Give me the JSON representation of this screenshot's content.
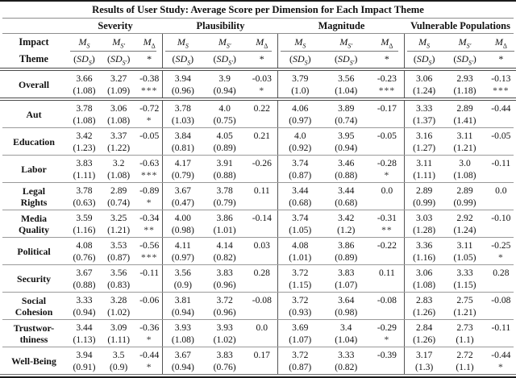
{
  "title": "Results of User Study: Average Score per Dimension for Each Impact Theme",
  "row_header": [
    "Impact",
    "Theme"
  ],
  "groups": [
    "Severity",
    "Plausibility",
    "Magnitude",
    "Vulnerable Populations"
  ],
  "subheader": {
    "mean": "M",
    "sd": "SD",
    "sub_s": "S",
    "sub_sp": "S′",
    "sub_d": "Δ",
    "star": "*",
    "paren_open": "(",
    "paren_close": ")"
  },
  "rows": [
    {
      "label": [
        "Overall"
      ],
      "groups": [
        {
          "m": "3.66",
          "sd": "(1.08)",
          "mp": "3.27",
          "sdp": "(1.09)",
          "d": "-0.38",
          "sig": "***"
        },
        {
          "m": "3.94",
          "sd": "(0.96)",
          "mp": "3.9",
          "sdp": "(0.94)",
          "d": "-0.03",
          "sig": "*"
        },
        {
          "m": "3.79",
          "sd": "(1.0)",
          "mp": "3.56",
          "sdp": "(1.04)",
          "d": "-0.23",
          "sig": "***"
        },
        {
          "m": "3.06",
          "sd": "(1.24)",
          "mp": "2.93",
          "sdp": "(1.18)",
          "d": "-0.13",
          "sig": "***"
        }
      ]
    },
    {
      "label": [
        "Aut"
      ],
      "groups": [
        {
          "m": "3.78",
          "sd": "(1.08)",
          "mp": "3.06",
          "sdp": "(1.08)",
          "d": "-0.72",
          "sig": "*"
        },
        {
          "m": "3.78",
          "sd": "(1.03)",
          "mp": "4.0",
          "sdp": "(0.75)",
          "d": "0.22",
          "sig": ""
        },
        {
          "m": "4.06",
          "sd": "(0.97)",
          "mp": "3.89",
          "sdp": "(0.74)",
          "d": "-0.17",
          "sig": ""
        },
        {
          "m": "3.33",
          "sd": "(1.37)",
          "mp": "2.89",
          "sdp": "(1.41)",
          "d": "-0.44",
          "sig": ""
        }
      ]
    },
    {
      "label": [
        "Education"
      ],
      "groups": [
        {
          "m": "3.42",
          "sd": "(1.23)",
          "mp": "3.37",
          "sdp": "(1.22)",
          "d": "-0.05",
          "sig": ""
        },
        {
          "m": "3.84",
          "sd": "(0.81)",
          "mp": "4.05",
          "sdp": "(0.89)",
          "d": "0.21",
          "sig": ""
        },
        {
          "m": "4.0",
          "sd": "(0.92)",
          "mp": "3.95",
          "sdp": "(0.94)",
          "d": "-0.05",
          "sig": ""
        },
        {
          "m": "3.16",
          "sd": "(1.27)",
          "mp": "3.11",
          "sdp": "(1.21)",
          "d": "-0.05",
          "sig": ""
        }
      ]
    },
    {
      "label": [
        "Labor"
      ],
      "groups": [
        {
          "m": "3.83",
          "sd": "(1.11)",
          "mp": "3.2",
          "sdp": "(1.08)",
          "d": "-0.63",
          "sig": "***"
        },
        {
          "m": "4.17",
          "sd": "(0.79)",
          "mp": "3.91",
          "sdp": "(0.88)",
          "d": "-0.26",
          "sig": ""
        },
        {
          "m": "3.74",
          "sd": "(0.87)",
          "mp": "3.46",
          "sdp": "(0.88)",
          "d": "-0.28",
          "sig": "*"
        },
        {
          "m": "3.11",
          "sd": "(1.11)",
          "mp": "3.0",
          "sdp": "(1.08)",
          "d": "-0.11",
          "sig": ""
        }
      ]
    },
    {
      "label": [
        "Legal",
        "Rights"
      ],
      "groups": [
        {
          "m": "3.78",
          "sd": "(0.63)",
          "mp": "2.89",
          "sdp": "(0.74)",
          "d": "-0.89",
          "sig": "*"
        },
        {
          "m": "3.67",
          "sd": "(0.47)",
          "mp": "3.78",
          "sdp": "(0.79)",
          "d": "0.11",
          "sig": ""
        },
        {
          "m": "3.44",
          "sd": "(0.68)",
          "mp": "3.44",
          "sdp": "(0.68)",
          "d": "0.0",
          "sig": ""
        },
        {
          "m": "2.89",
          "sd": "(0.99)",
          "mp": "2.89",
          "sdp": "(0.99)",
          "d": "0.0",
          "sig": ""
        }
      ]
    },
    {
      "label": [
        "Media",
        "Quality"
      ],
      "groups": [
        {
          "m": "3.59",
          "sd": "(1.16)",
          "mp": "3.25",
          "sdp": "(1.21)",
          "d": "-0.34",
          "sig": "**"
        },
        {
          "m": "4.00",
          "sd": "(0.98)",
          "mp": "3.86",
          "sdp": "(1.01)",
          "d": "-0.14",
          "sig": ""
        },
        {
          "m": "3.74",
          "sd": "(1.05)",
          "mp": "3.42",
          "sdp": "(1.2)",
          "d": "-0.31",
          "sig": "**"
        },
        {
          "m": "3.03",
          "sd": "(1.28)",
          "mp": "2.92",
          "sdp": "(1.24)",
          "d": "-0.10",
          "sig": ""
        }
      ]
    },
    {
      "label": [
        "Political"
      ],
      "groups": [
        {
          "m": "4.08",
          "sd": "(0.76)",
          "mp": "3.53",
          "sdp": "(0.87)",
          "d": "-0.56",
          "sig": "***"
        },
        {
          "m": "4.11",
          "sd": "(0.97)",
          "mp": "4.14",
          "sdp": "(0.82)",
          "d": "0.03",
          "sig": ""
        },
        {
          "m": "4.08",
          "sd": "(1.01)",
          "mp": "3.86",
          "sdp": "(0.89)",
          "d": "-0.22",
          "sig": ""
        },
        {
          "m": "3.36",
          "sd": "(1.16)",
          "mp": "3.11",
          "sdp": "(1.05)",
          "d": "-0.25",
          "sig": "*"
        }
      ]
    },
    {
      "label": [
        "Security"
      ],
      "groups": [
        {
          "m": "3.67",
          "sd": "(0.88)",
          "mp": "3.56",
          "sdp": "(0.83)",
          "d": "-0.11",
          "sig": ""
        },
        {
          "m": "3.56",
          "sd": "(0.9)",
          "mp": "3.83",
          "sdp": "(0.96)",
          "d": "0.28",
          "sig": ""
        },
        {
          "m": "3.72",
          "sd": "(1.15)",
          "mp": "3.83",
          "sdp": "(1.07)",
          "d": "0.11",
          "sig": ""
        },
        {
          "m": "3.06",
          "sd": "(1.08)",
          "mp": "3.33",
          "sdp": "(1.15)",
          "d": "0.28",
          "sig": ""
        }
      ]
    },
    {
      "label": [
        "Social",
        "Cohesion"
      ],
      "groups": [
        {
          "m": "3.33",
          "sd": "(0.94)",
          "mp": "3.28",
          "sdp": "(1.02)",
          "d": "-0.06",
          "sig": ""
        },
        {
          "m": "3.81",
          "sd": "(0.94)",
          "mp": "3.72",
          "sdp": "(0.96)",
          "d": "-0.08",
          "sig": ""
        },
        {
          "m": "3.72",
          "sd": "(0.93)",
          "mp": "3.64",
          "sdp": "(0.98)",
          "d": "-0.08",
          "sig": ""
        },
        {
          "m": "2.83",
          "sd": "(1.26)",
          "mp": "2.75",
          "sdp": "(1.21)",
          "d": "-0.08",
          "sig": ""
        }
      ]
    },
    {
      "label": [
        "Trustwor-",
        "thiness"
      ],
      "groups": [
        {
          "m": "3.44",
          "sd": "(1.13)",
          "mp": "3.09",
          "sdp": "(1.11)",
          "d": "-0.36",
          "sig": "*"
        },
        {
          "m": "3.93",
          "sd": "(1.08)",
          "mp": "3.93",
          "sdp": "(1.02)",
          "d": "0.0",
          "sig": ""
        },
        {
          "m": "3.69",
          "sd": "(1.07)",
          "mp": "3.4",
          "sdp": "(1.04)",
          "d": "-0.29",
          "sig": "*"
        },
        {
          "m": "2.84",
          "sd": "(1.26)",
          "mp": "2.73",
          "sdp": "(1.1)",
          "d": "-0.11",
          "sig": ""
        }
      ]
    },
    {
      "label": [
        "Well-Being"
      ],
      "groups": [
        {
          "m": "3.94",
          "sd": "(0.91)",
          "mp": "3.5",
          "sdp": "(0.9)",
          "d": "-0.44",
          "sig": "*"
        },
        {
          "m": "3.67",
          "sd": "(0.94)",
          "mp": "3.83",
          "sdp": "(0.76)",
          "d": "0.17",
          "sig": ""
        },
        {
          "m": "3.72",
          "sd": "(0.87)",
          "mp": "3.33",
          "sdp": "(0.82)",
          "d": "-0.39",
          "sig": ""
        },
        {
          "m": "3.17",
          "sd": "(1.3)",
          "mp": "2.72",
          "sdp": "(1.1)",
          "d": "-0.44",
          "sig": "*"
        }
      ]
    }
  ]
}
